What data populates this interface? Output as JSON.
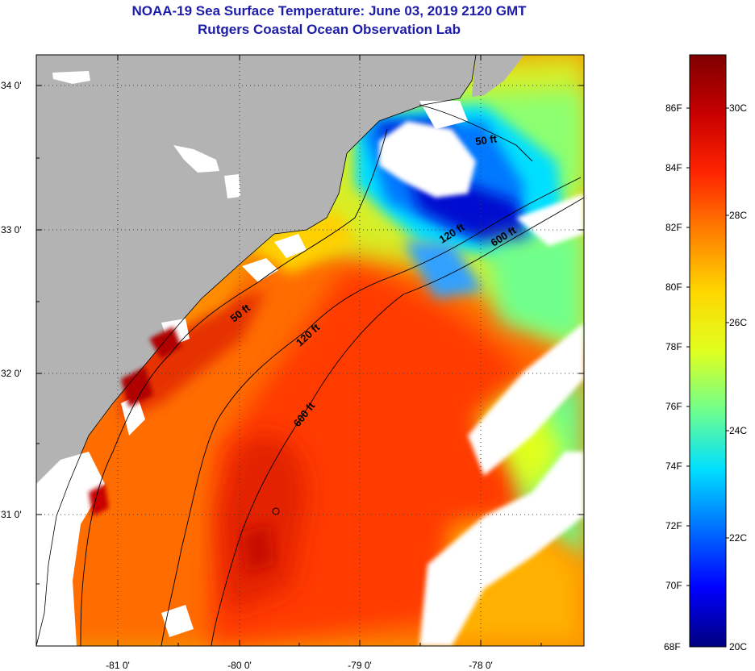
{
  "header": {
    "title": "NOAA-19 Sea Surface Temperature:  June 03, 2019 2120 GMT",
    "subtitle": "Rutgers Coastal Ocean Observation Lab"
  },
  "map": {
    "lat_labels": [
      "34 0'",
      "33 0'",
      "32 0'",
      "31 0'"
    ],
    "lon_labels": [
      "-81 0'",
      "-80 0'",
      "-79 0'",
      "-78 0'"
    ],
    "contours": [
      {
        "id": "50ft-north",
        "label": "50 ft"
      },
      {
        "id": "50ft-south",
        "label": "50 ft"
      },
      {
        "id": "120ft-north",
        "label": "120 ft"
      },
      {
        "id": "120ft-south",
        "label": "120 ft"
      },
      {
        "id": "600ft-north",
        "label": "600 ft"
      },
      {
        "id": "600ft-south",
        "label": "600 ft"
      }
    ],
    "colors": {
      "land": "#b3b3b3",
      "cloud": "#ffffff",
      "grid": "#3c3c3c"
    }
  },
  "colorbar": {
    "fahrenheit_labels": [
      "86F",
      "84F",
      "82F",
      "80F",
      "78F",
      "76F",
      "74F",
      "72F",
      "70F",
      "68F"
    ],
    "celsius_labels": [
      "30C",
      "28C",
      "26C",
      "24C",
      "22C",
      "20C"
    ],
    "range_c": [
      20,
      31.1
    ],
    "stops": [
      "#00007f",
      "#0000ff",
      "#0070ff",
      "#00dfff",
      "#70ff8c",
      "#e0ff1e",
      "#ffd700",
      "#ff8000",
      "#ff2500",
      "#c80000",
      "#7f0000"
    ]
  }
}
